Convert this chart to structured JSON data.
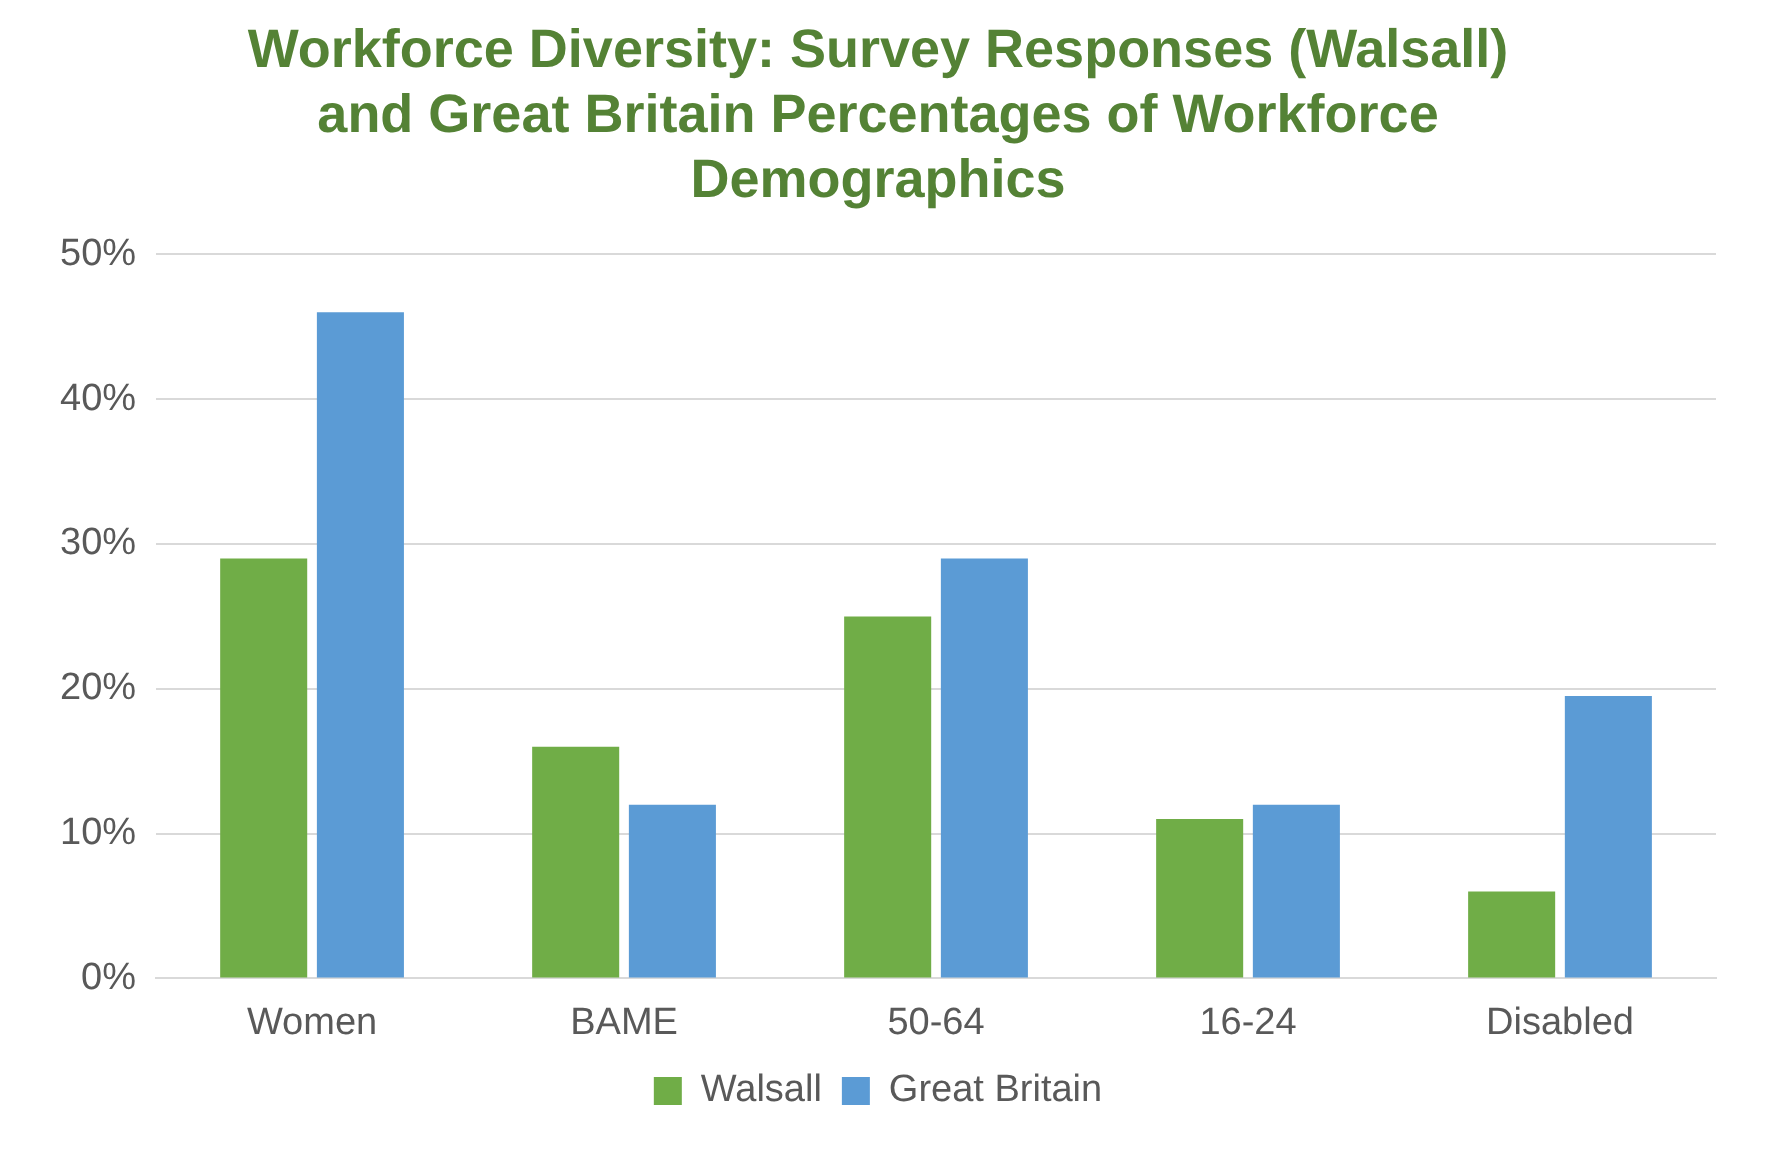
{
  "chart_data": {
    "type": "bar",
    "title": "Workforce Diversity: Survey Responses (Walsall) and Great Britain Percentages of Workforce Demographics",
    "categories": [
      "Women",
      "BAME",
      "50-64",
      "16-24",
      "Disabled"
    ],
    "series": [
      {
        "name": "Walsall",
        "color": "#70ad47",
        "values": [
          29,
          16,
          25,
          11,
          6
        ]
      },
      {
        "name": "Great Britain",
        "color": "#5b9bd5",
        "values": [
          46,
          12,
          29,
          12,
          19.5
        ]
      }
    ],
    "ylim": [
      0,
      50
    ],
    "yticks": [
      {
        "value": 0,
        "label": "0%"
      },
      {
        "value": 10,
        "label": "10%"
      },
      {
        "value": 20,
        "label": "20%"
      },
      {
        "value": 30,
        "label": "30%"
      },
      {
        "value": 40,
        "label": "40%"
      },
      {
        "value": 50,
        "label": "50%"
      }
    ],
    "grid": "y",
    "legend": "bottom"
  }
}
